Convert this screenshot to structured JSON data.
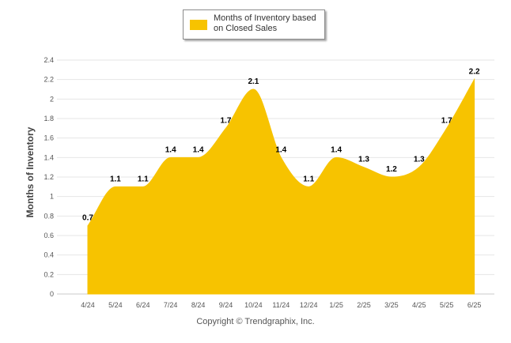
{
  "chart_data": {
    "type": "area",
    "categories": [
      "4/24",
      "5/24",
      "6/24",
      "7/24",
      "8/24",
      "9/24",
      "10/24",
      "11/24",
      "12/24",
      "1/25",
      "2/25",
      "3/25",
      "4/25",
      "5/25",
      "6/25"
    ],
    "series": [
      {
        "name": "Months of Inventory based on Closed Sales",
        "values": [
          0.7,
          1.1,
          1.1,
          1.4,
          1.4,
          1.7,
          2.1,
          1.4,
          1.1,
          1.4,
          1.3,
          1.2,
          1.3,
          1.7,
          2.2
        ],
        "color": "#F7C300"
      }
    ],
    "ylabel": "Months of Inventory",
    "xlabel": "",
    "ylim": [
      0,
      2.4
    ],
    "yticks": [
      0,
      0.2,
      0.4,
      0.6,
      0.8,
      1,
      1.2,
      1.4,
      1.6,
      1.8,
      2,
      2.2,
      2.4
    ],
    "grid": true,
    "legend": "top-center",
    "data_labels": true
  },
  "legend": {
    "label": "Months of Inventory based on Closed Sales"
  },
  "copyright": "Copyright © Trendgraphix, Inc."
}
